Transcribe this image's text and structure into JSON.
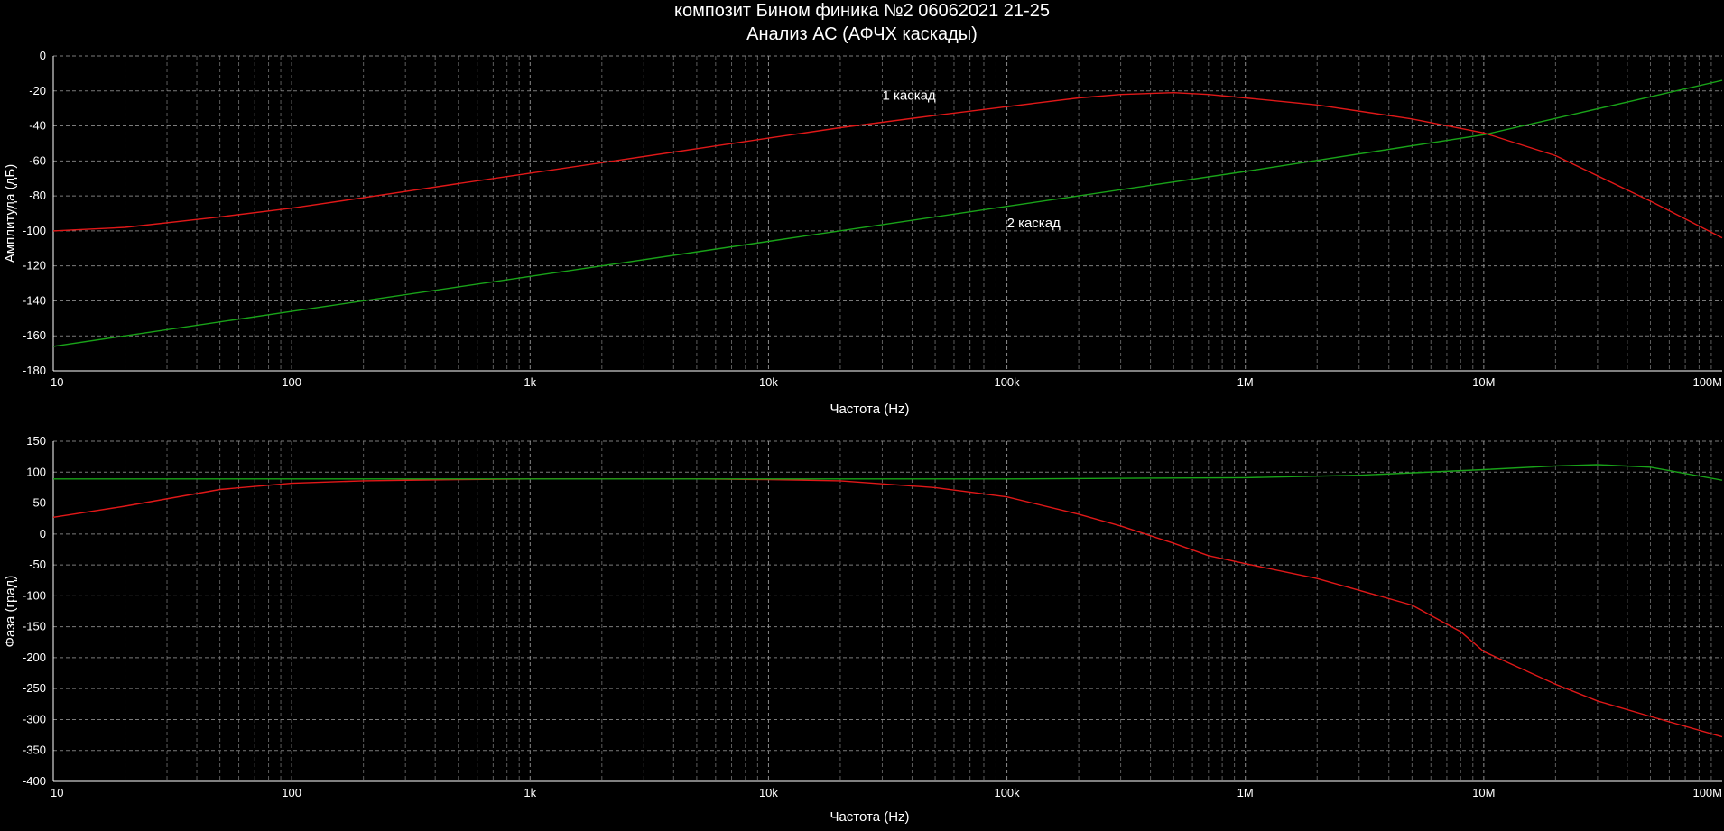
{
  "title": "композит Бином финика №2  06062021 21-25",
  "subtitle": "Анализ АС (АФЧХ каскады)",
  "colors": {
    "background": "#000000",
    "grid": "#9a9a9a",
    "series1": "#e01818",
    "series2": "#19a319",
    "text": "#ffffff"
  },
  "chart_data": [
    {
      "type": "line",
      "xscale": "log",
      "xlim": [
        10,
        100000000
      ],
      "ylim": [
        -180,
        0
      ],
      "xlabel": "Частота (Hz)",
      "ylabel": "Амплитуда (дБ)",
      "x_tick_labels": [
        "10",
        "100",
        "1k",
        "10k",
        "100k",
        "1M",
        "10M",
        "100M"
      ],
      "y_ticks": [
        0,
        -20,
        -40,
        -60,
        -80,
        -100,
        -120,
        -140,
        -160,
        -180
      ],
      "grid": true,
      "series": [
        {
          "name": "1 каскад",
          "color": "#e01818",
          "x": [
            10,
            20,
            50,
            100,
            200,
            500,
            1000,
            2000,
            5000,
            10000,
            20000,
            50000,
            100000,
            200000,
            300000,
            500000,
            700000,
            1000000,
            2000000,
            5000000,
            10000000,
            20000000,
            50000000,
            100000000
          ],
          "y": [
            -100,
            -98,
            -92,
            -87,
            -81,
            -73,
            -67,
            -61,
            -53,
            -47,
            -41,
            -34,
            -29,
            -24,
            -22,
            -21,
            -22,
            -24,
            -28,
            -36,
            -44,
            -57,
            -83,
            -104
          ]
        },
        {
          "name": "2 каскад",
          "color": "#19a319",
          "x": [
            10,
            100,
            1000,
            10000,
            100000,
            1000000,
            10000000,
            100000000
          ],
          "y": [
            -166,
            -146,
            -126,
            -106,
            -86,
            -66,
            -45,
            -14
          ]
        }
      ],
      "annotations": [
        {
          "text": "1 каскад",
          "x": 30000,
          "y": -25
        },
        {
          "text": "2 каскад",
          "x": 100000,
          "y": -98
        }
      ]
    },
    {
      "type": "line",
      "xscale": "log",
      "xlim": [
        10,
        100000000
      ],
      "ylim": [
        -400,
        150
      ],
      "xlabel": "Частота (Hz)",
      "ylabel": "Фаза (град)",
      "x_tick_labels": [
        "10",
        "100",
        "1k",
        "10k",
        "100k",
        "1M",
        "10M",
        "100M"
      ],
      "y_ticks": [
        150,
        100,
        50,
        0,
        -50,
        -100,
        -150,
        -200,
        -250,
        -300,
        -350,
        -400
      ],
      "grid": true,
      "series": [
        {
          "name": "",
          "color": "#e01818",
          "x": [
            10,
            20,
            50,
            100,
            200,
            500,
            1000,
            2000,
            5000,
            10000,
            20000,
            50000,
            100000,
            200000,
            300000,
            500000,
            700000,
            1000000,
            2000000,
            5000000,
            8000000,
            10000000,
            20000000,
            30000000,
            50000000,
            100000000
          ],
          "y": [
            27,
            45,
            72,
            82,
            86,
            88,
            89,
            89,
            89,
            88,
            86,
            75,
            60,
            32,
            13,
            -15,
            -35,
            -48,
            -72,
            -115,
            -158,
            -190,
            -243,
            -270,
            -295,
            -328
          ]
        },
        {
          "name": "",
          "color": "#19a319",
          "x": [
            10,
            100,
            1000,
            10000,
            100000,
            1000000,
            3000000,
            10000000,
            20000000,
            30000000,
            50000000,
            100000000
          ],
          "y": [
            89,
            89,
            89,
            89,
            89,
            91,
            95,
            104,
            110,
            112,
            108,
            87
          ]
        }
      ]
    }
  ]
}
